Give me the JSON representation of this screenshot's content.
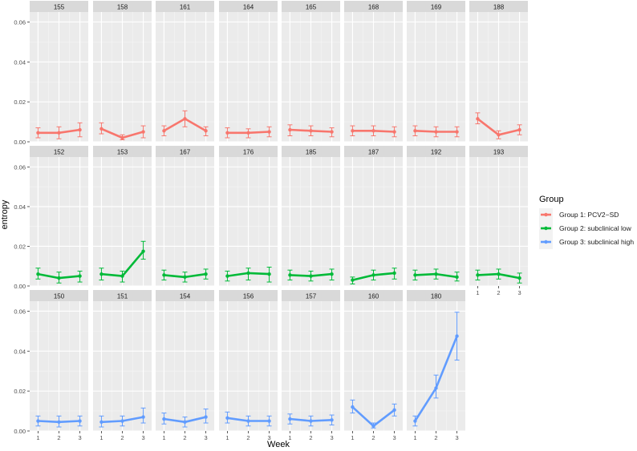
{
  "chart_data": {
    "type": "line",
    "title": "",
    "xlabel": "Week",
    "ylabel": "entropy",
    "x": [
      1,
      2,
      3
    ],
    "ylim": [
      0,
      0.065
    ],
    "y_ticks": [
      0,
      0.02,
      0.04,
      0.06
    ],
    "y_tick_labels": [
      "0.00",
      "0.02",
      "0.04",
      "0.06"
    ],
    "grid": true,
    "legend": {
      "title": "Group",
      "position": "right",
      "entries": [
        {
          "label": "Group 1: PCV2−SD",
          "color": "#F8766D"
        },
        {
          "label": "Group 2: subclinical low",
          "color": "#00BA38"
        },
        {
          "label": "Group 3: subclinical high",
          "color": "#619CFF"
        }
      ]
    },
    "panels": [
      {
        "label": "155",
        "group": 0,
        "values": [
          0.0045,
          0.0045,
          0.006
        ],
        "lower": [
          0.002,
          0.0015,
          0.0025
        ],
        "upper": [
          0.007,
          0.0075,
          0.0095
        ]
      },
      {
        "label": "158",
        "group": 0,
        "values": [
          0.0065,
          0.002,
          0.005
        ],
        "lower": [
          0.004,
          0.001,
          0.002
        ],
        "upper": [
          0.0095,
          0.0035,
          0.008
        ]
      },
      {
        "label": "161",
        "group": 0,
        "values": [
          0.0055,
          0.0115,
          0.0055
        ],
        "lower": [
          0.003,
          0.0075,
          0.003
        ],
        "upper": [
          0.008,
          0.0155,
          0.0075
        ]
      },
      {
        "label": "164",
        "group": 0,
        "values": [
          0.0045,
          0.0045,
          0.005
        ],
        "lower": [
          0.002,
          0.002,
          0.0025
        ],
        "upper": [
          0.007,
          0.0065,
          0.0075
        ]
      },
      {
        "label": "165",
        "group": 0,
        "values": [
          0.006,
          0.0055,
          0.005
        ],
        "lower": [
          0.003,
          0.003,
          0.0025
        ],
        "upper": [
          0.0085,
          0.008,
          0.007
        ]
      },
      {
        "label": "168",
        "group": 0,
        "values": [
          0.0055,
          0.0055,
          0.005
        ],
        "lower": [
          0.003,
          0.003,
          0.0025
        ],
        "upper": [
          0.008,
          0.008,
          0.0075
        ]
      },
      {
        "label": "169",
        "group": 0,
        "values": [
          0.0055,
          0.005,
          0.005
        ],
        "lower": [
          0.003,
          0.0025,
          0.0025
        ],
        "upper": [
          0.008,
          0.0075,
          0.0075
        ]
      },
      {
        "label": "188",
        "group": 0,
        "values": [
          0.0115,
          0.0035,
          0.006
        ],
        "lower": [
          0.009,
          0.0015,
          0.0035
        ],
        "upper": [
          0.0145,
          0.0055,
          0.0085
        ]
      },
      {
        "label": "152",
        "group": 1,
        "values": [
          0.006,
          0.004,
          0.005
        ],
        "lower": [
          0.0035,
          0.0015,
          0.002
        ],
        "upper": [
          0.009,
          0.007,
          0.0075
        ]
      },
      {
        "label": "153",
        "group": 1,
        "values": [
          0.006,
          0.005,
          0.0175
        ],
        "lower": [
          0.003,
          0.002,
          0.0135
        ],
        "upper": [
          0.009,
          0.0075,
          0.0225
        ]
      },
      {
        "label": "167",
        "group": 1,
        "values": [
          0.0055,
          0.0045,
          0.006
        ],
        "lower": [
          0.003,
          0.002,
          0.0035
        ],
        "upper": [
          0.008,
          0.007,
          0.0085
        ]
      },
      {
        "label": "176",
        "group": 1,
        "values": [
          0.005,
          0.0065,
          0.006
        ],
        "lower": [
          0.0025,
          0.003,
          0.002
        ],
        "upper": [
          0.0075,
          0.009,
          0.0095
        ]
      },
      {
        "label": "185",
        "group": 1,
        "values": [
          0.0055,
          0.005,
          0.006
        ],
        "lower": [
          0.003,
          0.0025,
          0.003
        ],
        "upper": [
          0.008,
          0.0075,
          0.0085
        ]
      },
      {
        "label": "187",
        "group": 1,
        "values": [
          0.003,
          0.0055,
          0.0065
        ],
        "lower": [
          0.001,
          0.003,
          0.0035
        ],
        "upper": [
          0.0045,
          0.008,
          0.009
        ]
      },
      {
        "label": "192",
        "group": 1,
        "values": [
          0.0055,
          0.006,
          0.0045
        ],
        "lower": [
          0.003,
          0.0035,
          0.0025
        ],
        "upper": [
          0.008,
          0.0085,
          0.007
        ]
      },
      {
        "label": "193",
        "group": 1,
        "values": [
          0.0055,
          0.006,
          0.004
        ],
        "lower": [
          0.003,
          0.0035,
          0.0015
        ],
        "upper": [
          0.008,
          0.0085,
          0.0065
        ]
      },
      {
        "label": "150",
        "group": 2,
        "values": [
          0.005,
          0.0045,
          0.005
        ],
        "lower": [
          0.0025,
          0.002,
          0.0025
        ],
        "upper": [
          0.0075,
          0.0075,
          0.0075
        ]
      },
      {
        "label": "151",
        "group": 2,
        "values": [
          0.0045,
          0.005,
          0.007
        ],
        "lower": [
          0.002,
          0.0025,
          0.004
        ],
        "upper": [
          0.0075,
          0.0075,
          0.0115
        ]
      },
      {
        "label": "154",
        "group": 2,
        "values": [
          0.006,
          0.0045,
          0.007
        ],
        "lower": [
          0.0035,
          0.002,
          0.004
        ],
        "upper": [
          0.009,
          0.007,
          0.011
        ]
      },
      {
        "label": "156",
        "group": 2,
        "values": [
          0.0065,
          0.005,
          0.005
        ],
        "lower": [
          0.004,
          0.0025,
          0.0025
        ],
        "upper": [
          0.0095,
          0.0075,
          0.0075
        ]
      },
      {
        "label": "157",
        "group": 2,
        "values": [
          0.006,
          0.005,
          0.0055
        ],
        "lower": [
          0.0035,
          0.0025,
          0.003
        ],
        "upper": [
          0.0085,
          0.0075,
          0.008
        ]
      },
      {
        "label": "160",
        "group": 2,
        "values": [
          0.012,
          0.0025,
          0.0105
        ],
        "lower": [
          0.009,
          0.0015,
          0.0075
        ],
        "upper": [
          0.0155,
          0.004,
          0.0135
        ]
      },
      {
        "label": "180",
        "group": 2,
        "values": [
          0.005,
          0.0215,
          0.0475
        ],
        "lower": [
          0.0025,
          0.0165,
          0.0355
        ],
        "upper": [
          0.0075,
          0.028,
          0.0595
        ]
      }
    ]
  }
}
